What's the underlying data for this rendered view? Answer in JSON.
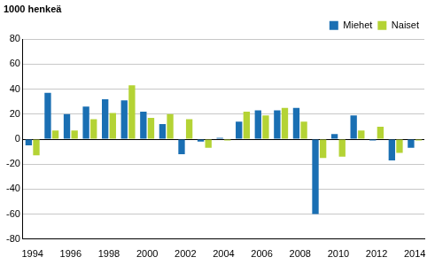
{
  "chart_data": {
    "type": "bar",
    "ylabel": "1000 henkeä",
    "categories": [
      "1994",
      null,
      "1996",
      null,
      "1998",
      null,
      "2000",
      null,
      "2002",
      null,
      "2004",
      null,
      "2006",
      null,
      "2008",
      null,
      "2010",
      null,
      "2012",
      null,
      "2014"
    ],
    "series": [
      {
        "name": "Miehet",
        "color": "#1a6fb3",
        "values": [
          -5,
          37,
          20,
          26,
          32,
          31,
          22,
          12,
          -12,
          -2,
          1,
          14,
          23,
          23,
          25,
          -60,
          4,
          19,
          -1,
          -17,
          -7
        ]
      },
      {
        "name": "Naiset",
        "color": "#b4d335",
        "values": [
          -13,
          7,
          7,
          16,
          21,
          43,
          17,
          20,
          16,
          -7,
          -1,
          22,
          19,
          25,
          14,
          -15,
          -14,
          7,
          10,
          -11,
          -1
        ]
      }
    ],
    "ylim": [
      -80,
      80
    ],
    "yticks": [
      -80,
      -60,
      -40,
      -20,
      0,
      20,
      40,
      60,
      80
    ],
    "grid": true,
    "legend": "upper right"
  }
}
